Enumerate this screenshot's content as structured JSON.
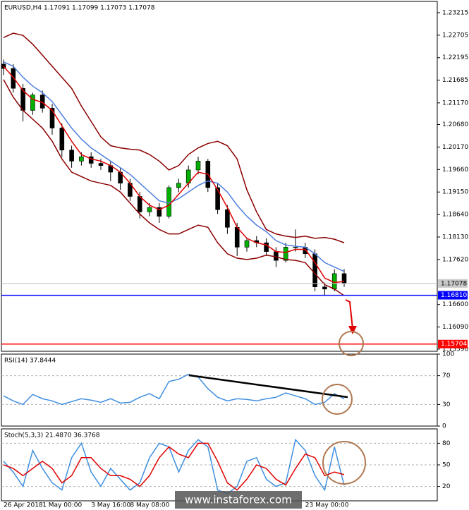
{
  "chart_data": [
    {
      "type": "candlestick",
      "title": "EURUSD,H4  1.17091 1.17099 1.17073 1.17078",
      "categories": [
        "26 Apr 2018",
        null,
        null,
        null,
        "1 May 00:00",
        null,
        null,
        null,
        null,
        "3 May 16:00",
        null,
        null,
        null,
        "8 May 08:00",
        null,
        null,
        null,
        null,
        null,
        null,
        null,
        null,
        null,
        null,
        null,
        null,
        null,
        null,
        null,
        null,
        null,
        "23 May 00:00",
        null,
        null,
        null,
        null
      ],
      "open": [
        1.2205,
        1.2195,
        1.215,
        1.21,
        1.2135,
        1.2105,
        1.206,
        1.201,
        1.1985,
        1.1995,
        1.198,
        1.1975,
        1.196,
        1.1935,
        1.1905,
        1.187,
        1.188,
        1.186,
        1.1925,
        1.1935,
        1.1965,
        1.1985,
        1.1925,
        1.1875,
        1.1835,
        1.179,
        1.1805,
        1.18,
        1.178,
        1.176,
        1.179,
        1.179,
        1.1775,
        1.17,
        1.1695,
        1.173
      ],
      "high": [
        1.2215,
        1.2205,
        1.216,
        1.214,
        1.2145,
        1.2115,
        1.207,
        1.202,
        1.2005,
        1.2005,
        1.199,
        1.1985,
        1.197,
        1.1945,
        1.1915,
        1.189,
        1.189,
        1.193,
        1.1945,
        1.1975,
        1.1995,
        1.199,
        1.1935,
        1.1885,
        1.1845,
        1.181,
        1.1815,
        1.181,
        1.179,
        1.18,
        1.183,
        1.18,
        1.1785,
        1.171,
        1.174,
        1.174
      ],
      "low": [
        1.218,
        1.214,
        1.2075,
        1.209,
        1.2095,
        1.2045,
        1.1995,
        1.197,
        1.1975,
        1.197,
        1.1965,
        1.194,
        1.192,
        1.1895,
        1.1855,
        1.186,
        1.1845,
        1.1855,
        1.1915,
        1.1925,
        1.1955,
        1.1915,
        1.1865,
        1.182,
        1.177,
        1.178,
        1.179,
        1.177,
        1.1745,
        1.1755,
        1.178,
        1.1765,
        1.169,
        1.168,
        1.169,
        1.17
      ],
      "close": [
        1.2195,
        1.215,
        1.21,
        1.2135,
        1.2105,
        1.206,
        1.201,
        1.1985,
        1.1995,
        1.198,
        1.1975,
        1.196,
        1.1935,
        1.1905,
        1.187,
        1.188,
        1.186,
        1.1925,
        1.1935,
        1.1965,
        1.1985,
        1.1925,
        1.1875,
        1.1835,
        1.179,
        1.1805,
        1.18,
        1.178,
        1.176,
        1.179,
        1.179,
        1.1775,
        1.17,
        1.1695,
        1.173,
        1.17078
      ],
      "up_color": "#00b000",
      "down_color": "#000000",
      "series": [
        {
          "color": "#8b0000",
          "values": [
            1.2265,
            1.2275,
            1.227,
            1.225,
            1.2225,
            1.22,
            1.2175,
            1.215,
            1.211,
            1.2075,
            1.204,
            1.202,
            1.2015,
            1.2012,
            1.201,
            1.2,
            1.1985,
            1.1965,
            1.1975,
            1.2,
            1.2015,
            1.2025,
            1.203,
            1.202,
            1.199,
            1.192,
            1.187,
            1.183,
            1.182,
            1.1815,
            1.1812,
            1.1815,
            1.181,
            1.1812,
            1.1808,
            1.18
          ]
        },
        {
          "color": "#8b0000",
          "values": [
            1.217,
            1.213,
            1.21,
            1.208,
            1.206,
            1.203,
            1.199,
            1.196,
            1.195,
            1.194,
            1.1935,
            1.193,
            1.1915,
            1.189,
            1.1865,
            1.1845,
            1.183,
            1.182,
            1.182,
            1.183,
            1.184,
            1.1835,
            1.18,
            1.1775,
            1.1765,
            1.1762,
            1.1765,
            1.1772,
            1.1768,
            1.1762,
            1.176,
            1.1755,
            1.173,
            1.1705,
            1.1695,
            1.168
          ]
        },
        {
          "color": "#4f7fe0",
          "values": [
            1.221,
            1.22,
            1.2175,
            1.2155,
            1.214,
            1.212,
            1.209,
            1.206,
            1.2035,
            1.2015,
            1.2,
            1.1985,
            1.197,
            1.1955,
            1.1935,
            1.1915,
            1.1895,
            1.189,
            1.19,
            1.1915,
            1.193,
            1.194,
            1.1935,
            1.1915,
            1.1885,
            1.186,
            1.184,
            1.1825,
            1.1805,
            1.1795,
            1.1792,
            1.179,
            1.1775,
            1.1755,
            1.1745,
            1.1735
          ]
        },
        {
          "color": "#e00000",
          "values": [
            1.22,
            1.2175,
            1.2145,
            1.2125,
            1.2118,
            1.21,
            1.2065,
            1.203,
            1.2,
            1.199,
            1.1985,
            1.1975,
            1.196,
            1.1935,
            1.1905,
            1.1885,
            1.1875,
            1.1885,
            1.191,
            1.1935,
            1.196,
            1.1955,
            1.192,
            1.188,
            1.1835,
            1.181,
            1.18,
            1.1795,
            1.178,
            1.1778,
            1.1785,
            1.1785,
            1.1755,
            1.172,
            1.171,
            1.1712
          ]
        }
      ],
      "levels": [
        {
          "price": {
            "value": 1.1681,
            "label": "1.16810"
          },
          "color": "#0000ff"
        },
        {
          "price": 1.15704,
          "color": "#ff0000"
        }
      ],
      "last_price": 1.17078,
      "ylim": [
        1.1554,
        1.2347
      ],
      "yticks": [
        1.23215,
        1.22705,
        1.22195,
        1.21685,
        {
          "value": 1.2117,
          "label": "1.21170"
        },
        {
          "value": 1.2068,
          "label": "1.20680"
        },
        {
          "value": 1.2017,
          "label": "1.20170"
        },
        {
          "value": 1.1966,
          "label": "1.19660"
        },
        {
          "value": 1.1915,
          "label": "1.19150"
        },
        {
          "value": 1.1864,
          "label": "1.18640"
        },
        {
          "value": 1.1813,
          "label": "1.18130"
        },
        {
          "value": 1.1762,
          "label": "1.17620"
        },
        {
          "value": 1.166,
          "label": "1.16600"
        },
        {
          "value": 1.1609,
          "label": "1.16090"
        },
        {
          "value": 1.1559,
          "label": "1.15590"
        }
      ]
    },
    {
      "type": "line",
      "title": "RSI(14) 37.8444",
      "series": [
        {
          "color": "#3f8fe0",
          "values": [
            42,
            35,
            30,
            44,
            38,
            35,
            30,
            34,
            38,
            36,
            33,
            38,
            32,
            33,
            40,
            45,
            38,
            62,
            65,
            72,
            68,
            52,
            40,
            35,
            38,
            37,
            35,
            38,
            40,
            46,
            42,
            38,
            30,
            33,
            45,
            37.8444
          ]
        }
      ],
      "ylim": [
        0,
        100
      ],
      "yticks": [
        100,
        70,
        30,
        0
      ]
    },
    {
      "type": "line",
      "title": "Stoch(5,3,3) 21.4870 36.3768",
      "series": [
        {
          "color": "#3f8fe0",
          "values": [
            55,
            40,
            20,
            70,
            45,
            25,
            15,
            60,
            80,
            40,
            20,
            45,
            30,
            15,
            25,
            60,
            80,
            75,
            40,
            70,
            85,
            75,
            15,
            10,
            20,
            55,
            60,
            30,
            20,
            25,
            85,
            70,
            35,
            15,
            75,
            21.487
          ]
        },
        {
          "color": "#e00000",
          "values": [
            50,
            45,
            35,
            45,
            55,
            45,
            25,
            35,
            60,
            60,
            45,
            35,
            35,
            30,
            20,
            35,
            60,
            75,
            65,
            60,
            80,
            80,
            55,
            25,
            15,
            30,
            50,
            45,
            30,
            22,
            45,
            65,
            60,
            35,
            40,
            36.3768
          ]
        }
      ],
      "ylim": [
        0,
        100
      ],
      "yticks": [
        80,
        50,
        20
      ]
    }
  ],
  "watermark": "www.instaforex.com"
}
